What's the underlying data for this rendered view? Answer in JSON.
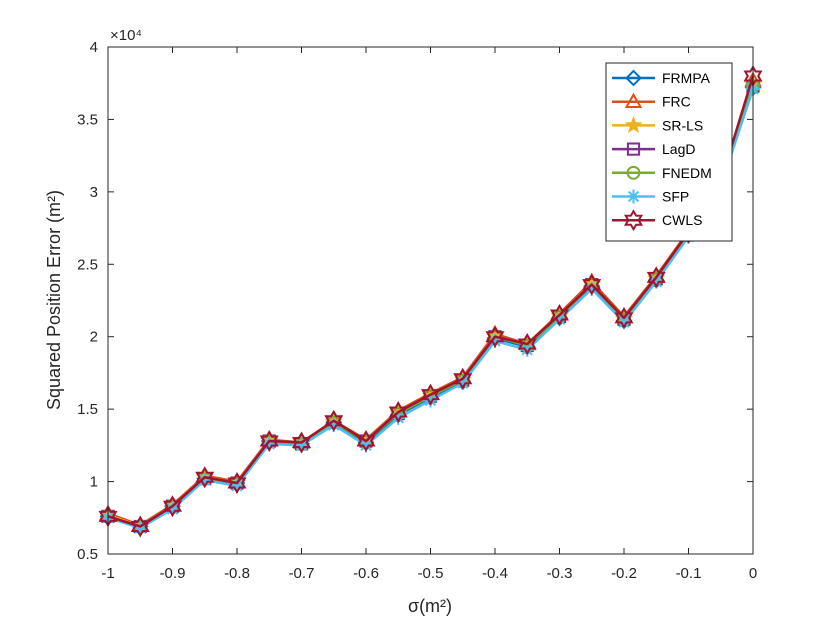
{
  "chart_data": {
    "type": "line",
    "title": "",
    "xlabel": "σ(m²)",
    "ylabel": "Squared Position Error (m²)",
    "y_multiplier_label": "×10⁴",
    "xlim": [
      -1,
      0
    ],
    "ylim": [
      0.5,
      4
    ],
    "xticks": [
      -1,
      -0.9,
      -0.8,
      -0.7,
      -0.6,
      -0.5,
      -0.4,
      -0.3,
      -0.2,
      -0.1,
      0
    ],
    "xtick_labels": [
      "-1",
      "-0.9",
      "-0.8",
      "-0.7",
      "-0.6",
      "-0.5",
      "-0.4",
      "-0.3",
      "-0.2",
      "-0.1",
      "0"
    ],
    "yticks": [
      0.5,
      1,
      1.5,
      2,
      2.5,
      3,
      3.5,
      4
    ],
    "ytick_labels": [
      "0.5",
      "1",
      "1.5",
      "2",
      "2.5",
      "3",
      "3.5",
      "4"
    ],
    "grid": false,
    "legend_position": "top-right",
    "x": [
      -1,
      -0.95,
      -0.9,
      -0.85,
      -0.8,
      -0.75,
      -0.7,
      -0.65,
      -0.6,
      -0.55,
      -0.5,
      -0.45,
      -0.4,
      -0.35,
      -0.3,
      -0.25,
      -0.2,
      -0.15,
      -0.1,
      -0.05,
      0
    ],
    "series": [
      {
        "name": "FRMPA",
        "color": "#0072BD",
        "marker": "diamond",
        "values": [
          0.76,
          0.69,
          0.83,
          1.02,
          0.99,
          1.28,
          1.26,
          1.41,
          1.27,
          1.46,
          1.58,
          1.69,
          1.99,
          1.93,
          2.13,
          2.35,
          2.11,
          2.39,
          2.7,
          3.05,
          3.72
        ]
      },
      {
        "name": "FRC",
        "color": "#D95319",
        "marker": "triangle",
        "values": [
          0.78,
          0.7,
          0.84,
          1.04,
          1.0,
          1.29,
          1.27,
          1.42,
          1.29,
          1.49,
          1.61,
          1.72,
          2.02,
          1.95,
          2.16,
          2.38,
          2.14,
          2.42,
          2.73,
          3.08,
          3.77
        ]
      },
      {
        "name": "SR-LS",
        "color": "#EDB120",
        "marker": "star",
        "values": [
          0.77,
          0.69,
          0.83,
          1.03,
          0.99,
          1.28,
          1.26,
          1.41,
          1.28,
          1.47,
          1.59,
          1.7,
          2.0,
          1.94,
          2.14,
          2.36,
          2.12,
          2.4,
          2.71,
          3.06,
          3.74
        ]
      },
      {
        "name": "LagD",
        "color": "#7E2F8E",
        "marker": "square",
        "values": [
          0.76,
          0.69,
          0.83,
          1.02,
          0.99,
          1.28,
          1.26,
          1.41,
          1.28,
          1.47,
          1.59,
          1.7,
          2.0,
          1.94,
          2.14,
          2.36,
          2.12,
          2.4,
          2.71,
          3.06,
          3.73
        ]
      },
      {
        "name": "FNEDM",
        "color": "#77AC30",
        "marker": "circle",
        "values": [
          0.76,
          0.69,
          0.83,
          1.02,
          0.99,
          1.28,
          1.26,
          1.41,
          1.28,
          1.47,
          1.59,
          1.7,
          2.0,
          1.94,
          2.14,
          2.36,
          2.12,
          2.4,
          2.71,
          3.06,
          3.73
        ]
      },
      {
        "name": "SFP",
        "color": "#4DBEEE",
        "marker": "asterisk",
        "values": [
          0.75,
          0.68,
          0.81,
          1.01,
          0.97,
          1.26,
          1.25,
          1.39,
          1.25,
          1.44,
          1.56,
          1.68,
          1.97,
          1.91,
          2.12,
          2.33,
          2.1,
          2.38,
          2.69,
          3.04,
          3.71
        ]
      },
      {
        "name": "CWLS",
        "color": "#A2142F",
        "marker": "hexagram",
        "values": [
          0.76,
          0.69,
          0.83,
          1.03,
          0.99,
          1.28,
          1.27,
          1.42,
          1.28,
          1.48,
          1.6,
          1.71,
          2.0,
          1.95,
          2.15,
          2.36,
          2.13,
          2.41,
          2.72,
          3.07,
          3.8
        ]
      }
    ]
  }
}
